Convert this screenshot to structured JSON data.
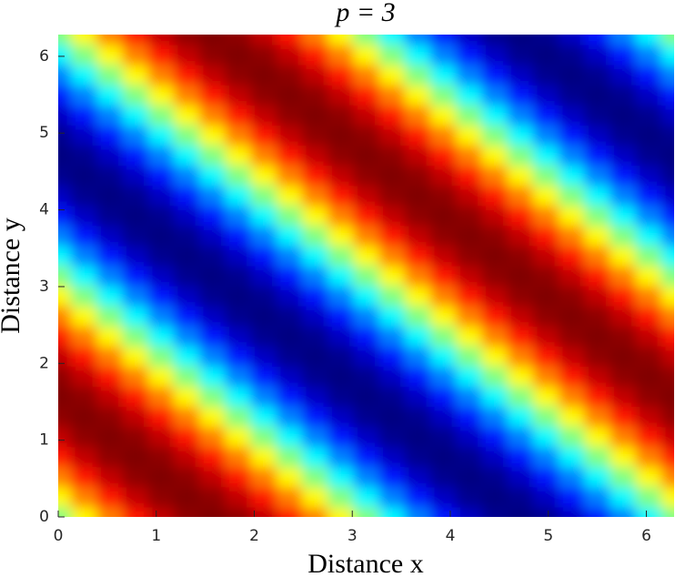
{
  "chart_data": {
    "type": "heatmap",
    "title": "p = 3",
    "x_label": "Distance x",
    "y_label": "Distance y",
    "colormap": "jet",
    "clim": [
      -1,
      1
    ],
    "x": [
      0,
      0.2618,
      0.5236,
      0.7854,
      1.0472,
      1.309,
      1.5708,
      1.8326,
      2.0944,
      2.3562,
      2.618,
      2.8798,
      3.1416,
      3.4034,
      3.6652,
      3.927,
      4.1888,
      4.4506,
      4.7124,
      4.9742,
      5.236,
      5.4978,
      5.7596,
      6.0214,
      6.2832
    ],
    "y": [
      0,
      0.2618,
      0.5236,
      0.7854,
      1.0472,
      1.309,
      1.5708,
      1.8326,
      2.0944,
      2.3562,
      2.618,
      2.8798,
      3.1416,
      3.4034,
      3.6652,
      3.927,
      4.1888,
      4.4506,
      4.7124,
      4.9742,
      5.236,
      5.4978,
      5.7596,
      6.0214,
      6.2832
    ],
    "z": [
      [
        0,
        0.26,
        0.5,
        0.71,
        0.87,
        0.97,
        1,
        0.97,
        0.87,
        0.71,
        0.5,
        0.26,
        0,
        -0.26,
        -0.5,
        -0.71,
        -0.87,
        -0.97,
        -1,
        -0.97,
        -0.87,
        -0.71,
        -0.5,
        -0.26,
        0
      ],
      [
        0.26,
        0.5,
        0.71,
        0.87,
        0.97,
        1,
        0.97,
        0.87,
        0.71,
        0.5,
        0.26,
        0,
        -0.26,
        -0.5,
        -0.71,
        -0.87,
        -0.97,
        -1,
        -0.97,
        -0.87,
        -0.71,
        -0.5,
        -0.26,
        0,
        0.26
      ],
      [
        0.5,
        0.71,
        0.87,
        0.97,
        1,
        0.97,
        0.87,
        0.71,
        0.5,
        0.26,
        0,
        -0.26,
        -0.5,
        -0.71,
        -0.87,
        -0.97,
        -1,
        -0.97,
        -0.87,
        -0.71,
        -0.5,
        -0.26,
        0,
        0.26,
        0.5
      ],
      [
        0.71,
        0.87,
        0.97,
        1,
        0.97,
        0.87,
        0.71,
        0.5,
        0.26,
        0,
        -0.26,
        -0.5,
        -0.71,
        -0.87,
        -0.97,
        -1,
        -0.97,
        -0.87,
        -0.71,
        -0.5,
        -0.26,
        0,
        0.26,
        0.5,
        0.71
      ],
      [
        0.87,
        0.97,
        1,
        0.97,
        0.87,
        0.71,
        0.5,
        0.26,
        0,
        -0.26,
        -0.5,
        -0.71,
        -0.87,
        -0.97,
        -1,
        -0.97,
        -0.87,
        -0.71,
        -0.5,
        -0.26,
        0,
        0.26,
        0.5,
        0.71,
        0.87
      ],
      [
        0.97,
        1,
        0.97,
        0.87,
        0.71,
        0.5,
        0.26,
        0,
        -0.26,
        -0.5,
        -0.71,
        -0.87,
        -0.97,
        -1,
        -0.97,
        -0.87,
        -0.71,
        -0.5,
        -0.26,
        0,
        0.26,
        0.5,
        0.71,
        0.87,
        0.97
      ],
      [
        1,
        0.97,
        0.87,
        0.71,
        0.5,
        0.26,
        0,
        -0.26,
        -0.5,
        -0.71,
        -0.87,
        -0.97,
        -1,
        -0.97,
        -0.87,
        -0.71,
        -0.5,
        -0.26,
        0,
        0.26,
        0.5,
        0.71,
        0.87,
        0.97,
        1
      ],
      [
        0.97,
        0.87,
        0.71,
        0.5,
        0.26,
        0,
        -0.26,
        -0.5,
        -0.71,
        -0.87,
        -0.97,
        -1,
        -0.97,
        -0.87,
        -0.71,
        -0.5,
        -0.26,
        0,
        0.26,
        0.5,
        0.71,
        0.87,
        0.97,
        1,
        0.97
      ],
      [
        0.87,
        0.71,
        0.5,
        0.26,
        0,
        -0.26,
        -0.5,
        -0.71,
        -0.87,
        -0.97,
        -1,
        -0.97,
        -0.87,
        -0.71,
        -0.5,
        -0.26,
        0,
        0.26,
        0.5,
        0.71,
        0.87,
        0.97,
        1,
        0.97,
        0.87
      ],
      [
        0.71,
        0.5,
        0.26,
        0,
        -0.26,
        -0.5,
        -0.71,
        -0.87,
        -0.97,
        -1,
        -0.97,
        -0.87,
        -0.71,
        -0.5,
        -0.26,
        0,
        0.26,
        0.5,
        0.71,
        0.87,
        0.97,
        1,
        0.97,
        0.87,
        0.71
      ],
      [
        0.5,
        0.26,
        0,
        -0.26,
        -0.5,
        -0.71,
        -0.87,
        -0.97,
        -1,
        -0.97,
        -0.87,
        -0.71,
        -0.5,
        -0.26,
        0,
        0.26,
        0.5,
        0.71,
        0.87,
        0.97,
        1,
        0.97,
        0.87,
        0.71,
        0.5
      ],
      [
        0.26,
        0,
        -0.26,
        -0.5,
        -0.71,
        -0.87,
        -0.97,
        -1,
        -0.97,
        -0.87,
        -0.71,
        -0.5,
        -0.26,
        0,
        0.26,
        0.5,
        0.71,
        0.87,
        0.97,
        1,
        0.97,
        0.87,
        0.71,
        0.5,
        0.26
      ],
      [
        0,
        -0.26,
        -0.5,
        -0.71,
        -0.87,
        -0.97,
        -1,
        -0.97,
        -0.87,
        -0.71,
        -0.5,
        -0.26,
        0,
        0.26,
        0.5,
        0.71,
        0.87,
        0.97,
        1,
        0.97,
        0.87,
        0.71,
        0.5,
        0.26,
        0
      ],
      [
        -0.26,
        -0.5,
        -0.71,
        -0.87,
        -0.97,
        -1,
        -0.97,
        -0.87,
        -0.71,
        -0.5,
        -0.26,
        0,
        0.26,
        0.5,
        0.71,
        0.87,
        0.97,
        1,
        0.97,
        0.87,
        0.71,
        0.5,
        0.26,
        0,
        -0.26
      ],
      [
        -0.5,
        -0.71,
        -0.87,
        -0.97,
        -1,
        -0.97,
        -0.87,
        -0.71,
        -0.5,
        -0.26,
        0,
        0.26,
        0.5,
        0.71,
        0.87,
        0.97,
        1,
        0.97,
        0.87,
        0.71,
        0.5,
        0.26,
        0,
        -0.26,
        -0.5
      ],
      [
        -0.71,
        -0.87,
        -0.97,
        -1,
        -0.97,
        -0.87,
        -0.71,
        -0.5,
        -0.26,
        0,
        0.26,
        0.5,
        0.71,
        0.87,
        0.97,
        1,
        0.97,
        0.87,
        0.71,
        0.5,
        0.26,
        0,
        -0.26,
        -0.5,
        -0.71
      ],
      [
        -0.87,
        -0.97,
        -1,
        -0.97,
        -0.87,
        -0.71,
        -0.5,
        -0.26,
        0,
        0.26,
        0.5,
        0.71,
        0.87,
        0.97,
        1,
        0.97,
        0.87,
        0.71,
        0.5,
        0.26,
        0,
        -0.26,
        -0.5,
        -0.71,
        -0.87
      ],
      [
        -0.97,
        -1,
        -0.97,
        -0.87,
        -0.71,
        -0.5,
        -0.26,
        0,
        0.26,
        0.5,
        0.71,
        0.87,
        0.97,
        1,
        0.97,
        0.87,
        0.71,
        0.5,
        0.26,
        0,
        -0.26,
        -0.5,
        -0.71,
        -0.87,
        -0.97
      ],
      [
        -1,
        -0.97,
        -0.87,
        -0.71,
        -0.5,
        -0.26,
        0,
        0.26,
        0.5,
        0.71,
        0.87,
        0.97,
        1,
        0.97,
        0.87,
        0.71,
        0.5,
        0.26,
        0,
        -0.26,
        -0.5,
        -0.71,
        -0.87,
        -0.97,
        -1
      ],
      [
        -0.97,
        -0.87,
        -0.71,
        -0.5,
        -0.26,
        0,
        0.26,
        0.5,
        0.71,
        0.87,
        0.97,
        1,
        0.97,
        0.87,
        0.71,
        0.5,
        0.26,
        0,
        -0.26,
        -0.5,
        -0.71,
        -0.87,
        -0.97,
        -1,
        -0.97
      ],
      [
        -0.87,
        -0.71,
        -0.5,
        -0.26,
        0,
        0.26,
        0.5,
        0.71,
        0.87,
        0.97,
        1,
        0.97,
        0.87,
        0.71,
        0.5,
        0.26,
        0,
        -0.26,
        -0.5,
        -0.71,
        -0.87,
        -0.97,
        -1,
        -0.97,
        -0.87
      ],
      [
        -0.71,
        -0.5,
        -0.26,
        0,
        0.26,
        0.5,
        0.71,
        0.87,
        0.97,
        1,
        0.97,
        0.87,
        0.71,
        0.5,
        0.26,
        0,
        -0.26,
        -0.5,
        -0.71,
        -0.87,
        -0.97,
        -1,
        -0.97,
        -0.87,
        -0.71
      ],
      [
        -0.5,
        -0.26,
        0,
        0.26,
        0.5,
        0.71,
        0.87,
        0.97,
        1,
        0.97,
        0.87,
        0.71,
        0.5,
        0.26,
        0,
        -0.26,
        -0.5,
        -0.71,
        -0.87,
        -0.97,
        -1,
        -0.97,
        -0.87,
        -0.71,
        -0.5
      ],
      [
        -0.26,
        0,
        0.26,
        0.5,
        0.71,
        0.87,
        0.97,
        1,
        0.97,
        0.87,
        0.71,
        0.5,
        0.26,
        0,
        -0.26,
        -0.5,
        -0.71,
        -0.87,
        -0.97,
        -1,
        -0.97,
        -0.87,
        -0.71,
        -0.5,
        -0.26
      ],
      [
        0,
        0.26,
        0.5,
        0.71,
        0.87,
        0.97,
        1,
        0.97,
        0.87,
        0.71,
        0.5,
        0.26,
        0,
        -0.26,
        -0.5,
        -0.71,
        -0.87,
        -0.97,
        -1,
        -0.97,
        -0.87,
        -0.71,
        -0.5,
        -0.26,
        0
      ]
    ],
    "xlim": [
      0,
      6.2832
    ],
    "ylim": [
      0,
      6.2832
    ],
    "xticks": [
      0,
      1,
      2,
      3,
      4,
      5,
      6
    ],
    "yticks": [
      0,
      1,
      2,
      3,
      4,
      5,
      6
    ],
    "grid": false
  }
}
